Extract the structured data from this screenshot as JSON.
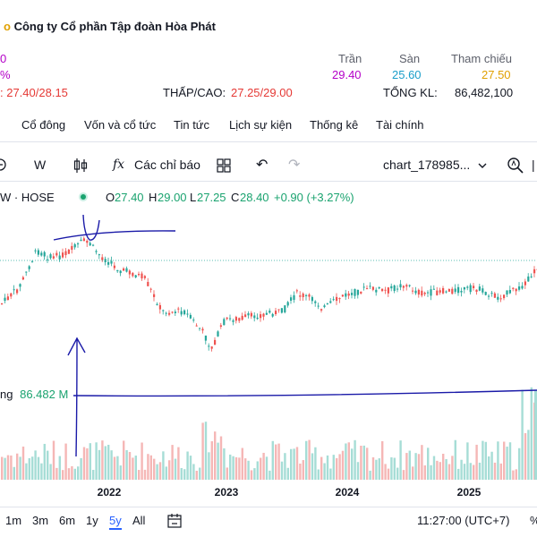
{
  "company": {
    "name": "Công ty Cổ phần Tập đoàn Hòa Phát"
  },
  "prices": {
    "left_top": "0",
    "left_pct": "%",
    "ceiling_label": "Trần",
    "ceiling": "29.40",
    "floor_label": "Sàn",
    "floor": "25.60",
    "ref_label": "Tham chiếu",
    "ref": "27.50",
    "open_range": ": 27.40/28.15",
    "lowhigh_label": "THẤP/CAO:",
    "lowhigh": "27.25/29.00",
    "total_label": "TỔNG KL:",
    "total": "86,482,100"
  },
  "tabs": [
    "Cổ đông",
    "Vốn và cổ tức",
    "Tin tức",
    "Lịch sự kiện",
    "Thống kê",
    "Tài chính"
  ],
  "toolbar": {
    "interval": "W",
    "indicators": "Các chỉ báo",
    "chart_name": "chart_178985..."
  },
  "legend": {
    "symbol": "W · HOSE",
    "o_label": "O",
    "o": "27.40",
    "h_label": "H",
    "h": "29.00",
    "l_label": "L",
    "l": "27.25",
    "c_label": "C",
    "c": "28.40",
    "change": "+0.90 (+3.27%)"
  },
  "volume": {
    "label": "ng",
    "value": "86.482 M"
  },
  "chart_data": {
    "type": "candlestick",
    "x_ticks": [
      "2022",
      "2023",
      "2024",
      "2025"
    ],
    "volume_last": 86.482
  },
  "ranges": [
    "1m",
    "3m",
    "6m",
    "1y",
    "5y",
    "All"
  ],
  "active_range": "5y",
  "time": "11:27:00 (UTC+7)",
  "colors": {
    "up": "#26a69a",
    "down": "#ef5350",
    "annotation": "#1a1aa8",
    "accent": "#2962ff"
  }
}
